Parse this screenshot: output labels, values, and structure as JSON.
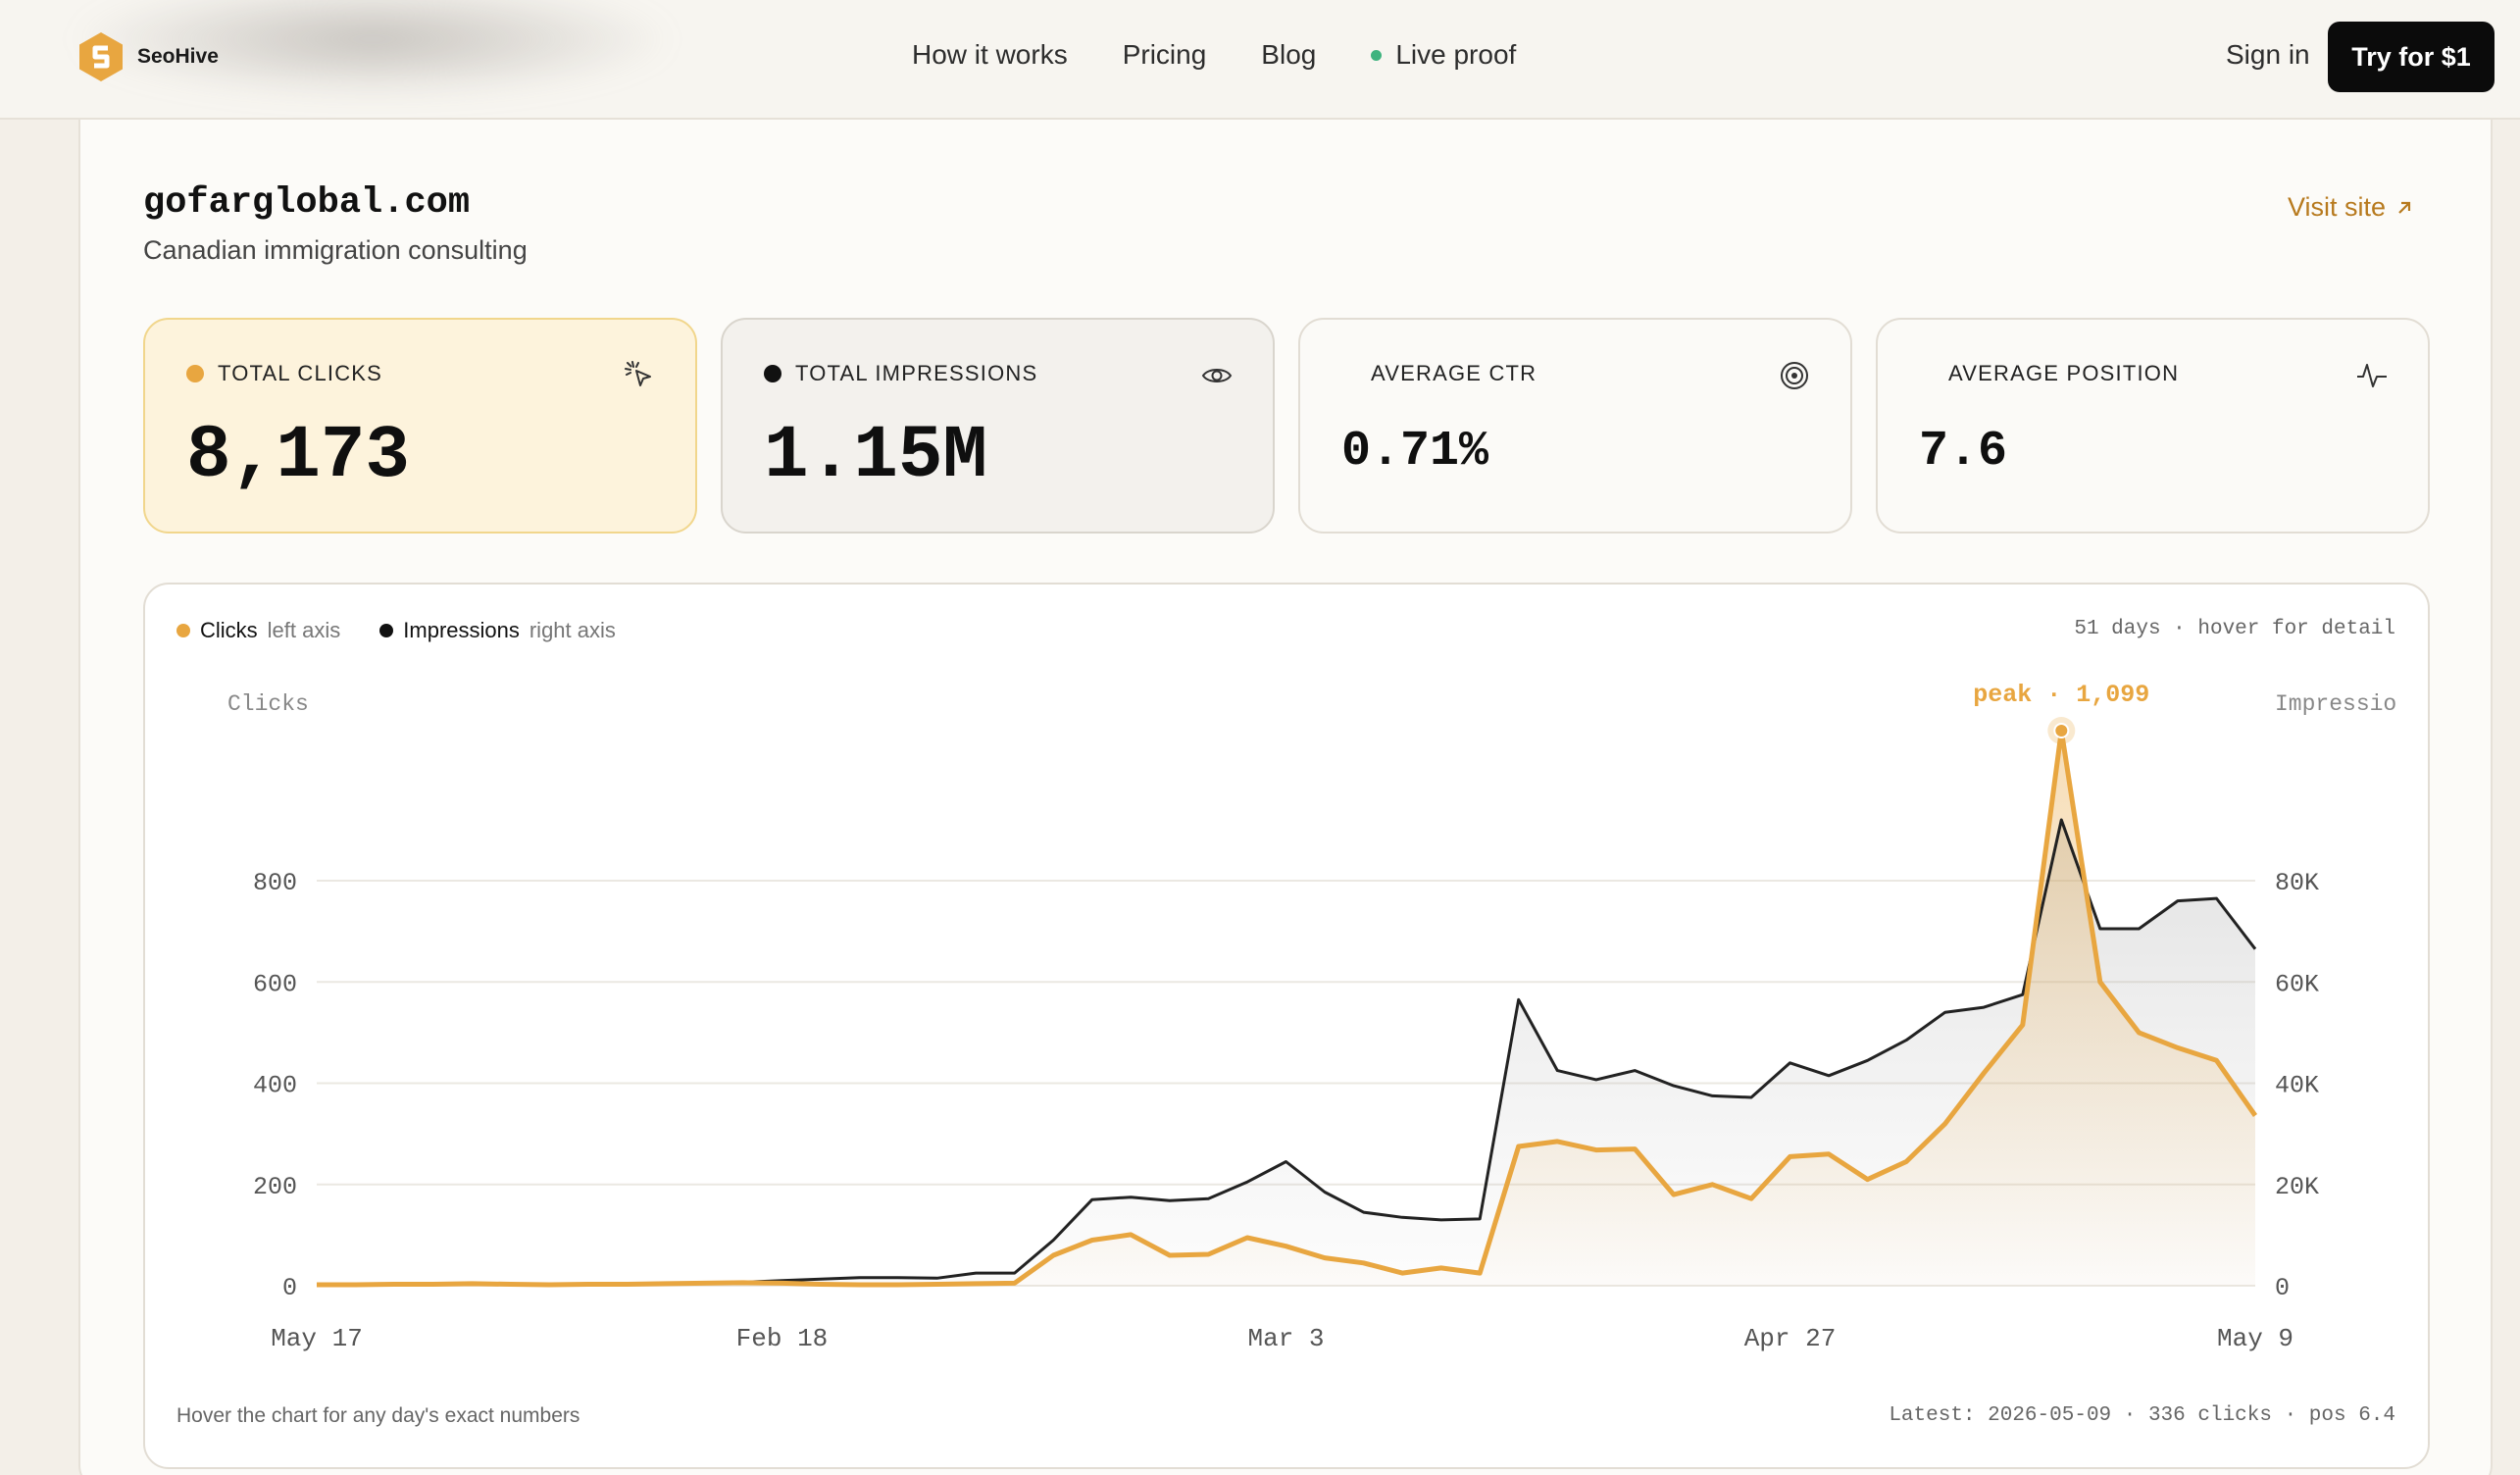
{
  "nav": {
    "brand": "SeoHive",
    "links": [
      "How it works",
      "Pricing",
      "Blog",
      "Live proof"
    ],
    "sign_in": "Sign in",
    "cta": "Try for $1"
  },
  "site": {
    "name": "gofarglobal.com",
    "description": "Canadian immigration consulting",
    "visit_label": "Visit site"
  },
  "stats": [
    {
      "label": "TOTAL CLICKS",
      "value": "8,173",
      "dot_color": "#e8a640",
      "icon": "cursor-click-icon"
    },
    {
      "label": "TOTAL IMPRESSIONS",
      "value": "1.15M",
      "dot_color": "#111111",
      "icon": "eye-icon"
    },
    {
      "label": "AVERAGE CTR",
      "value": "0.71%",
      "icon": "target-icon"
    },
    {
      "label": "AVERAGE POSITION",
      "value": "7.6",
      "icon": "activity-icon"
    }
  ],
  "chart_meta": "51 days · hover for detail",
  "chart_footer_left": "Hover the chart for any day's exact numbers",
  "chart_footer_right": "Latest: 2026-05-09 · 336 clicks · pos 6.4",
  "colors": {
    "clicks": "#e8a640",
    "impressions": "#222222"
  },
  "chart_data": {
    "type": "line",
    "legend": [
      {
        "name": "Clicks",
        "axis": "left axis"
      },
      {
        "name": "Impressions",
        "axis": "right axis"
      }
    ],
    "ylabel_left": "Clicks",
    "ylabel_right": "Impressio",
    "left_ticks": [
      0,
      200,
      400,
      600,
      800
    ],
    "right_ticks": [
      "0",
      "20K",
      "40K",
      "60K",
      "80K"
    ],
    "ylim_left": [
      0,
      800
    ],
    "ylim_right": [
      0,
      80000
    ],
    "x_tick_labels": [
      "May 17",
      "Feb 18",
      "Mar 3",
      "Apr 27",
      "May 9"
    ],
    "x_tick_index": [
      0,
      12,
      25,
      38,
      50
    ],
    "peak_label": "peak · 1,099",
    "peak_index": 45,
    "series": [
      {
        "name": "Clicks",
        "values": [
          2,
          2,
          3,
          3,
          4,
          3,
          2,
          3,
          3,
          4,
          5,
          6,
          5,
          3,
          2,
          2,
          3,
          4,
          5,
          60,
          90,
          101,
          60,
          62,
          95,
          78,
          55,
          45,
          25,
          35,
          25,
          275,
          285,
          268,
          270,
          180,
          200,
          172,
          255,
          260,
          210,
          245,
          320,
          420,
          515,
          1099,
          600,
          500,
          470,
          445,
          336
        ]
      },
      {
        "name": "Impressions",
        "values": [
          100,
          100,
          150,
          200,
          200,
          200,
          150,
          200,
          300,
          300,
          500,
          700,
          1000,
          1300,
          1600,
          1600,
          1500,
          2500,
          2500,
          9000,
          17000,
          17500,
          16800,
          17200,
          20500,
          24500,
          18500,
          14500,
          13500,
          13000,
          13200,
          56500,
          42500,
          40700,
          42500,
          39500,
          37500,
          37200,
          44000,
          41500,
          44500,
          48500,
          54000,
          55000,
          57500,
          92000,
          70500,
          70500,
          76000,
          76500,
          66500
        ]
      }
    ]
  }
}
